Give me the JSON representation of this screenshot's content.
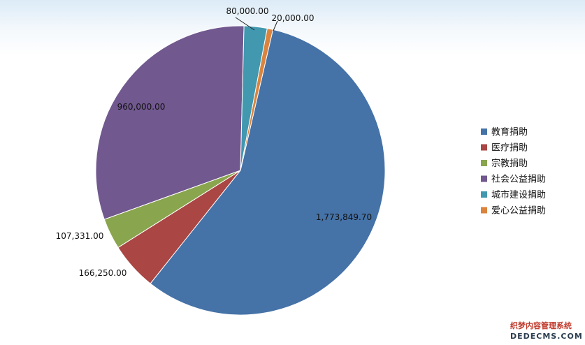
{
  "chart_data": {
    "type": "pie",
    "categories": [
      "教育捐助",
      "医疗捐助",
      "宗教捐助",
      "社会公益捐助",
      "城市建设捐助",
      "爱心公益捐助"
    ],
    "values": [
      1773849.7,
      166250.0,
      107331.0,
      960000.0,
      80000.0,
      20000.0
    ],
    "value_labels": [
      "1,773,849.70",
      "166,250.00",
      "107,331.00",
      "960,000.00",
      "80,000.00",
      "20,000.00"
    ],
    "colors": [
      "#4572a7",
      "#aa4643",
      "#89a54e",
      "#71588f",
      "#4198af",
      "#db843d"
    ],
    "legend_position": "right",
    "title": ""
  },
  "watermark": {
    "line1": "织梦内容管理系统",
    "line2": "DEDECMS.COM"
  }
}
